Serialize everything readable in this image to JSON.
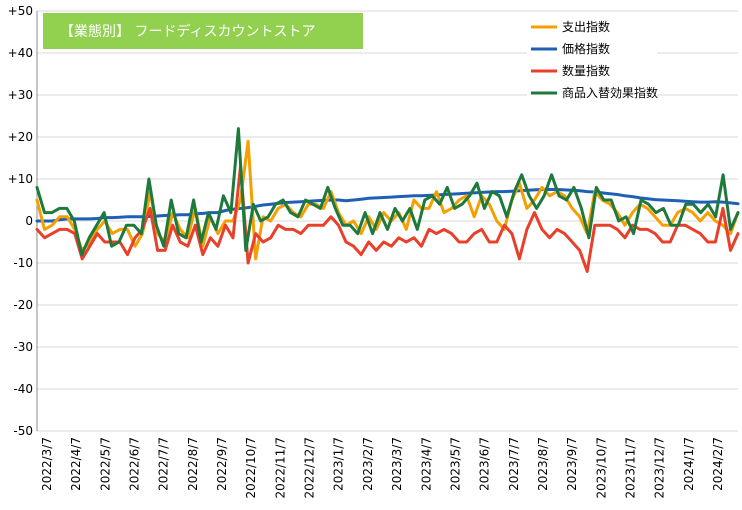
{
  "chart_data": {
    "type": "line",
    "title": "【業態別】 フードディスカウントストア",
    "ylim": [
      -50,
      50
    ],
    "y_ticks": [
      "+50",
      "+40",
      "+30",
      "+20",
      "+10",
      "0",
      "-10",
      "-20",
      "-30",
      "-40",
      "-50"
    ],
    "x_labels": [
      "2022/3/7",
      "2022/4/7",
      "2022/5/7",
      "2022/6/7",
      "2022/7/7",
      "2022/8/7",
      "2022/9/7",
      "2022/10/7",
      "2022/11/7",
      "2022/12/7",
      "2023/1/7",
      "2023/2/7",
      "2023/3/7",
      "2023/4/7",
      "2023/5/7",
      "2023/6/7",
      "2023/7/7",
      "2023/8/7",
      "2023/9/7",
      "2023/10/7",
      "2023/11/7",
      "2023/12/7",
      "2024/1/7",
      "2024/2/7"
    ],
    "series": [
      {
        "name": "支出指数",
        "color": "#F5A000",
        "values": [
          5,
          -2,
          -1,
          1,
          1,
          -2,
          -7,
          -5,
          -2,
          0,
          -3,
          -2,
          -2,
          -6,
          -3,
          7,
          -3,
          -5,
          2,
          -2,
          -4,
          3,
          -6,
          1,
          -3,
          0,
          0,
          5,
          19,
          -9,
          1,
          0,
          3,
          4,
          2,
          1,
          4,
          4,
          3,
          7,
          2,
          -1,
          0,
          -3,
          1,
          -2,
          2,
          0,
          2,
          -2,
          5,
          3,
          3,
          7,
          2,
          3,
          5,
          6,
          1,
          6,
          4,
          0,
          -2,
          5,
          9,
          3,
          5,
          8,
          6,
          7,
          6,
          3,
          1,
          -3,
          7,
          5,
          4,
          2,
          -1,
          2,
          4,
          3,
          1,
          -1,
          -1,
          2,
          3,
          2,
          0,
          2,
          0,
          -1,
          -3,
          2
        ]
      },
      {
        "name": "価格指数",
        "color": "#1F5FB5",
        "values": [
          0,
          0,
          0,
          0.3,
          0.5,
          0.5,
          0.5,
          0.5,
          0.6,
          0.8,
          0.8,
          0.9,
          1,
          1,
          1,
          1.1,
          1.2,
          1.3,
          1.4,
          1.5,
          1.5,
          1.7,
          1.8,
          2,
          2,
          2.5,
          2.8,
          3,
          3.2,
          3.5,
          3.8,
          4,
          4.2,
          4.4,
          4.5,
          4.6,
          4.7,
          4.8,
          4.9,
          5,
          5,
          4.8,
          5,
          5.2,
          5.4,
          5.5,
          5.6,
          5.7,
          5.8,
          5.9,
          6,
          6,
          6.1,
          6.2,
          6.3,
          6.4,
          6.5,
          6.6,
          6.7,
          6.8,
          6.9,
          7,
          7,
          7.1,
          7.2,
          7.3,
          7.4,
          7.5,
          7.5,
          7.5,
          7.4,
          7.3,
          7.2,
          7,
          6.9,
          6.7,
          6.5,
          6.3,
          6,
          5.8,
          5.5,
          5.3,
          5.1,
          5,
          4.9,
          4.8,
          4.7,
          4.6,
          4.5,
          4.5,
          4.6,
          4.5,
          4.3,
          4.1
        ]
      },
      {
        "name": "数量指数",
        "color": "#E8402A",
        "values": [
          -2,
          -4,
          -3,
          -2,
          -2,
          -3,
          -9,
          -6,
          -3,
          -5,
          -5,
          -5,
          -8,
          -4,
          -2,
          3,
          -7,
          -7,
          -1,
          -5,
          -6,
          -1,
          -8,
          -4,
          -6,
          -1,
          -4,
          13,
          -10,
          -3,
          -5,
          -4,
          -1,
          -2,
          -2,
          -3,
          -1,
          -1,
          -1,
          1,
          -1,
          -5,
          -6,
          -8,
          -5,
          -7,
          -5,
          -6,
          -4,
          -5,
          -4,
          -6,
          -2,
          -3,
          -2,
          -3,
          -5,
          -5,
          -3,
          -2,
          -5,
          -5,
          -1,
          -3,
          -9,
          -2,
          2,
          -2,
          -4,
          -2,
          -3,
          -5,
          -7,
          -12,
          -1,
          -1,
          -1,
          -2,
          -4,
          -1,
          -2,
          -2,
          -3,
          -5,
          -5,
          -1,
          -1,
          -2,
          -3,
          -5,
          -5,
          3,
          -7,
          -3
        ]
      },
      {
        "name": "商品入替効果指数",
        "color": "#1E7A3C",
        "values": [
          8,
          2,
          2,
          3,
          3,
          0,
          -8,
          -4,
          -1,
          2,
          -6,
          -5,
          -1,
          -1,
          -3,
          10,
          -1,
          -6,
          5,
          -3,
          -4,
          5,
          -5,
          2,
          -2,
          6,
          2,
          22,
          -7,
          4,
          0,
          1,
          4,
          5,
          2,
          1,
          5,
          4,
          3,
          8,
          3,
          -1,
          -1,
          -3,
          2,
          -3,
          2,
          -2,
          3,
          0,
          3,
          -2,
          5,
          6,
          4,
          8,
          3,
          4,
          6,
          9,
          3,
          7,
          6,
          1,
          7,
          11,
          6,
          3,
          6,
          11,
          6,
          5,
          8,
          3,
          -4,
          8,
          5,
          5,
          0,
          1,
          -3,
          5,
          4,
          2,
          3,
          -1,
          -1,
          4,
          4,
          2,
          4,
          1,
          11,
          -2,
          2
        ]
      }
    ],
    "grid": "horizontal",
    "legend_placement": "top-right"
  },
  "colors": {
    "title_bg": "#92D050",
    "grid": "#D9D9D9",
    "axis": "#8C8C8C"
  }
}
